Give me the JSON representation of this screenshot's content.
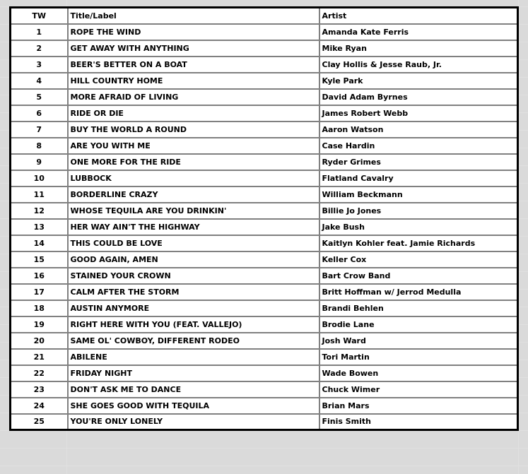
{
  "headers": {
    "tw": "TW",
    "title": "Title/Label",
    "artist": "Artist"
  },
  "rows": [
    {
      "tw": "1",
      "title": "ROPE THE WIND",
      "artist": "Amanda Kate Ferris"
    },
    {
      "tw": "2",
      "title": "GET AWAY WITH ANYTHING",
      "artist": "Mike Ryan"
    },
    {
      "tw": "3",
      "title": "BEER'S BETTER ON A BOAT",
      "artist": "Clay Hollis & Jesse Raub, Jr."
    },
    {
      "tw": "4",
      "title": "HILL COUNTRY HOME",
      "artist": "Kyle Park"
    },
    {
      "tw": "5",
      "title": "MORE AFRAID OF LIVING",
      "artist": "David Adam Byrnes"
    },
    {
      "tw": "6",
      "title": "RIDE OR DIE",
      "artist": "James Robert Webb"
    },
    {
      "tw": "7",
      "title": "BUY THE WORLD A ROUND",
      "artist": "Aaron Watson"
    },
    {
      "tw": "8",
      "title": "ARE YOU WITH ME",
      "artist": "Case Hardin"
    },
    {
      "tw": "9",
      "title": "ONE MORE FOR THE RIDE",
      "artist": "Ryder Grimes"
    },
    {
      "tw": "10",
      "title": "LUBBOCK",
      "artist": "Flatland Cavalry"
    },
    {
      "tw": "11",
      "title": "BORDERLINE CRAZY",
      "artist": "William Beckmann"
    },
    {
      "tw": "12",
      "title": "WHOSE TEQUILA ARE YOU DRINKIN'",
      "artist": "Billie Jo Jones"
    },
    {
      "tw": "13",
      "title": "HER WAY AIN'T THE HIGHWAY",
      "artist": "Jake Bush"
    },
    {
      "tw": "14",
      "title": "THIS COULD BE LOVE",
      "artist": "Kaitlyn Kohler feat. Jamie Richards"
    },
    {
      "tw": "15",
      "title": "GOOD AGAIN, AMEN",
      "artist": "Keller Cox"
    },
    {
      "tw": "16",
      "title": "STAINED YOUR CROWN",
      "artist": "Bart Crow Band"
    },
    {
      "tw": "17",
      "title": "CALM AFTER THE STORM",
      "artist": "Britt Hoffman w/ Jerrod Medulla"
    },
    {
      "tw": "18",
      "title": "AUSTIN ANYMORE",
      "artist": "Brandi Behlen"
    },
    {
      "tw": "19",
      "title": "RIGHT HERE WITH YOU (FEAT. VALLEJO)",
      "artist": "Brodie Lane"
    },
    {
      "tw": "20",
      "title": "SAME OL' COWBOY, DIFFERENT RODEO",
      "artist": "Josh Ward"
    },
    {
      "tw": "21",
      "title": "ABILENE",
      "artist": "Tori Martin"
    },
    {
      "tw": "22",
      "title": "FRIDAY NIGHT",
      "artist": "Wade Bowen"
    },
    {
      "tw": "23",
      "title": "DON'T ASK ME TO DANCE",
      "artist": "Chuck Wimer"
    },
    {
      "tw": "24",
      "title": "SHE GOES GOOD WITH TEQUILA",
      "artist": "Brian Mars"
    },
    {
      "tw": "25",
      "title": "YOU'RE ONLY LONELY",
      "artist": "Finis Smith"
    }
  ]
}
